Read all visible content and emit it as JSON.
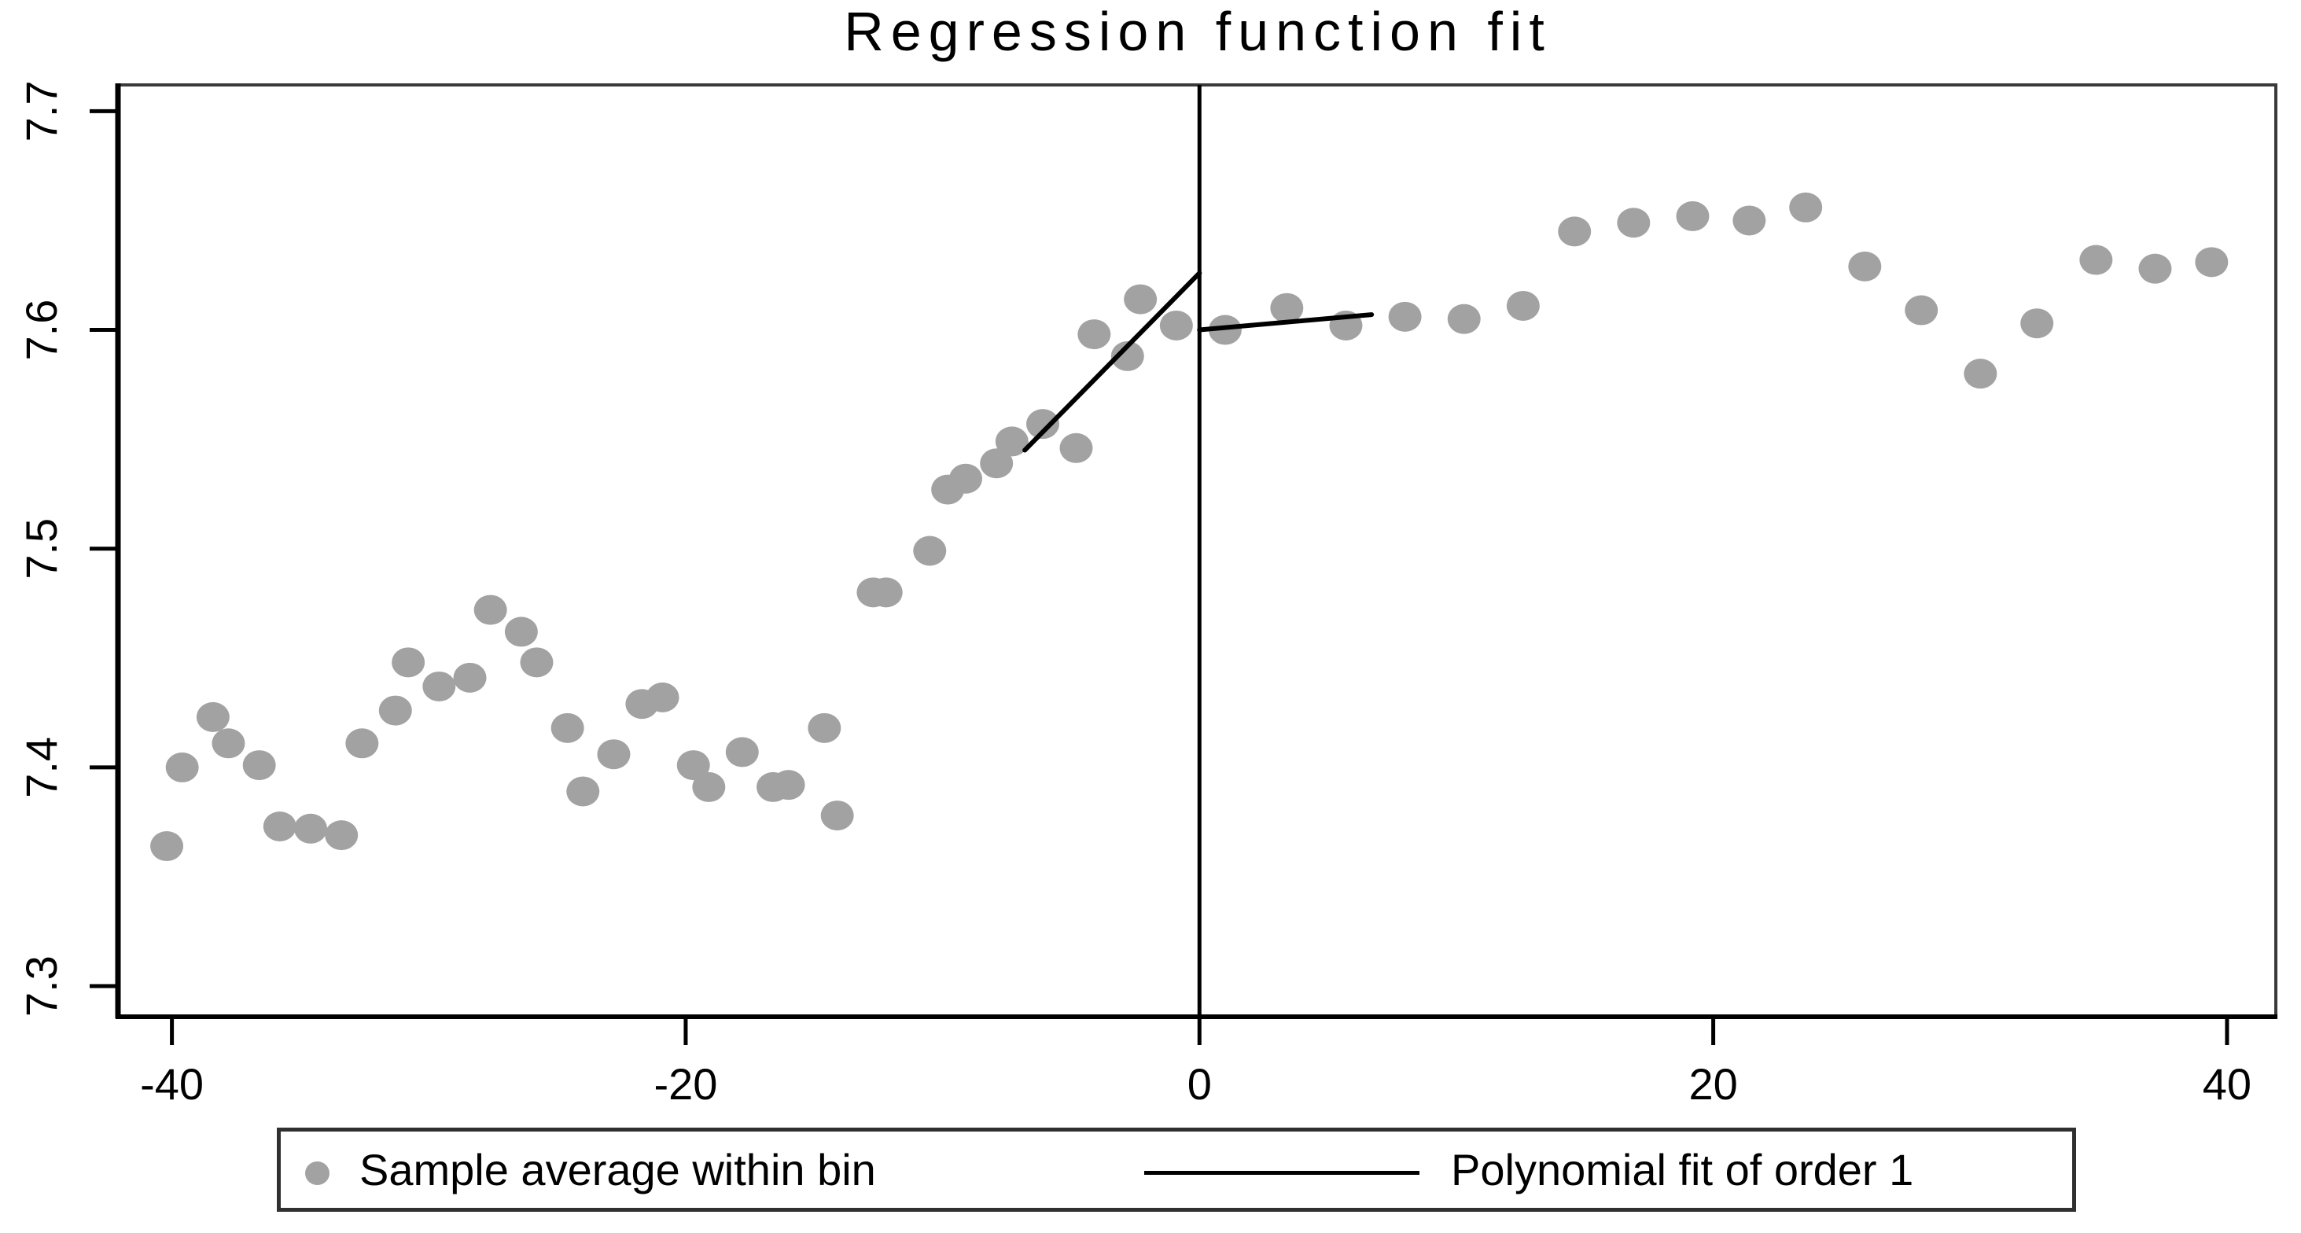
{
  "title": "Regression function fit",
  "legend": {
    "marker_label": "Sample average within bin",
    "line_label": "Polynomial fit of order 1"
  },
  "colors": {
    "marker": "#a2a2a2",
    "fit_line": "#000000",
    "cutoff_line": "#000000",
    "axis": "#000000",
    "frame": "#3a3a3a",
    "text": "#000000",
    "background": "#ffffff"
  },
  "chart_data": {
    "type": "scatter",
    "title": "Regression function fit",
    "xlabel": "",
    "ylabel": "",
    "xlim": [
      -42.1,
      41.9
    ],
    "ylim": [
      7.286,
      7.712
    ],
    "x_ticks": [
      -40,
      -20,
      0,
      20,
      40
    ],
    "x_tick_labels": [
      "-40",
      "-20",
      "0",
      "20",
      "40"
    ],
    "y_ticks": [
      7.3,
      7.4,
      7.5,
      7.6,
      7.7
    ],
    "y_tick_labels": [
      "7.3",
      "7.4",
      "7.5",
      "7.6",
      "7.7"
    ],
    "grid": false,
    "legend_position": "bottom",
    "cutoff_x": 0,
    "series": [
      {
        "name": "Sample average within bin",
        "type": "scatter",
        "points": [
          [
            -40.2,
            7.364
          ],
          [
            -39.6,
            7.4
          ],
          [
            -38.4,
            7.423
          ],
          [
            -37.8,
            7.411
          ],
          [
            -36.6,
            7.401
          ],
          [
            -35.8,
            7.373
          ],
          [
            -34.6,
            7.372
          ],
          [
            -33.4,
            7.369
          ],
          [
            -32.6,
            7.411
          ],
          [
            -31.3,
            7.426
          ],
          [
            -30.8,
            7.448
          ],
          [
            -29.6,
            7.437
          ],
          [
            -28.4,
            7.441
          ],
          [
            -27.6,
            7.472
          ],
          [
            -26.4,
            7.462
          ],
          [
            -25.8,
            7.448
          ],
          [
            -24.6,
            7.418
          ],
          [
            -24.0,
            7.389
          ],
          [
            -22.8,
            7.406
          ],
          [
            -21.7,
            7.429
          ],
          [
            -20.9,
            7.432
          ],
          [
            -19.7,
            7.401
          ],
          [
            -19.1,
            7.391
          ],
          [
            -17.8,
            7.407
          ],
          [
            -16.6,
            7.391
          ],
          [
            -16.0,
            7.392
          ],
          [
            -14.6,
            7.418
          ],
          [
            -14.1,
            7.378
          ],
          [
            -12.7,
            7.48
          ],
          [
            -12.2,
            7.48
          ],
          [
            -10.5,
            7.499
          ],
          [
            -9.8,
            7.527
          ],
          [
            -9.1,
            7.532
          ],
          [
            -7.9,
            7.539
          ],
          [
            -7.3,
            7.549
          ],
          [
            -6.1,
            7.557
          ],
          [
            -4.8,
            7.546
          ],
          [
            -4.1,
            7.598
          ],
          [
            -2.8,
            7.588
          ],
          [
            -2.3,
            7.614
          ],
          [
            -0.9,
            7.602
          ],
          [
            1.0,
            7.6
          ],
          [
            3.4,
            7.61
          ],
          [
            5.7,
            7.602
          ],
          [
            8.0,
            7.606
          ],
          [
            10.3,
            7.605
          ],
          [
            12.6,
            7.611
          ],
          [
            14.6,
            7.645
          ],
          [
            16.9,
            7.649
          ],
          [
            19.2,
            7.652
          ],
          [
            21.4,
            7.65
          ],
          [
            23.6,
            7.656
          ],
          [
            25.9,
            7.629
          ],
          [
            28.1,
            7.609
          ],
          [
            30.4,
            7.58
          ],
          [
            32.6,
            7.603
          ],
          [
            34.9,
            7.632
          ],
          [
            37.2,
            7.628
          ],
          [
            39.4,
            7.631
          ]
        ]
      },
      {
        "name": "Polynomial fit of order 1",
        "type": "line",
        "segments": [
          {
            "x": [
              -6.8,
              0.0
            ],
            "y": [
              7.545,
              7.626
            ]
          },
          {
            "x": [
              0.0,
              6.7
            ],
            "y": [
              7.6,
              7.607
            ]
          }
        ]
      }
    ]
  }
}
